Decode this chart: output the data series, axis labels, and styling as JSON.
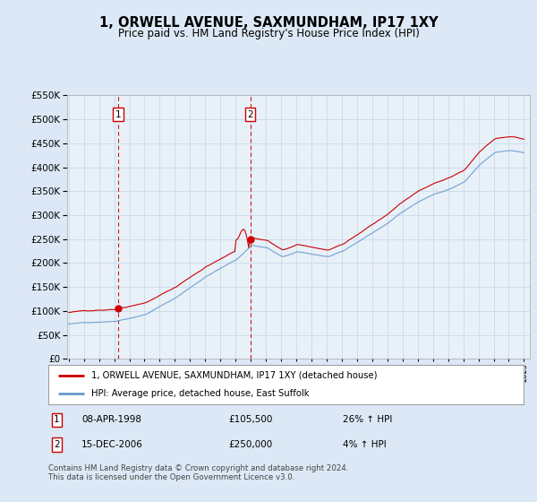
{
  "title": "1, ORWELL AVENUE, SAXMUNDHAM, IP17 1XY",
  "subtitle": "Price paid vs. HM Land Registry's House Price Index (HPI)",
  "legend_line1": "1, ORWELL AVENUE, SAXMUNDHAM, IP17 1XY (detached house)",
  "legend_line2": "HPI: Average price, detached house, East Suffolk",
  "transaction1_date": "08-APR-1998",
  "transaction1_price": "£105,500",
  "transaction1_hpi": "26% ↑ HPI",
  "transaction2_date": "15-DEC-2006",
  "transaction2_price": "£250,000",
  "transaction2_hpi": "4% ↑ HPI",
  "footnote": "Contains HM Land Registry data © Crown copyright and database right 2024.\nThis data is licensed under the Open Government Licence v3.0.",
  "sale1_x": 1998.27,
  "sale1_y": 105500,
  "sale2_x": 2006.96,
  "sale2_y": 250000,
  "vline1_x": 1998.27,
  "vline2_x": 2006.96,
  "ylim": [
    0,
    550000
  ],
  "xlim": [
    1994.9,
    2025.4
  ],
  "yticks": [
    0,
    50000,
    100000,
    150000,
    200000,
    250000,
    300000,
    350000,
    400000,
    450000,
    500000,
    550000
  ],
  "background_color": "#dce8f5",
  "plot_background": "#e8f0f8",
  "red_color": "#cc0000",
  "blue_color": "#6699cc",
  "vline_color": "#cc0000"
}
